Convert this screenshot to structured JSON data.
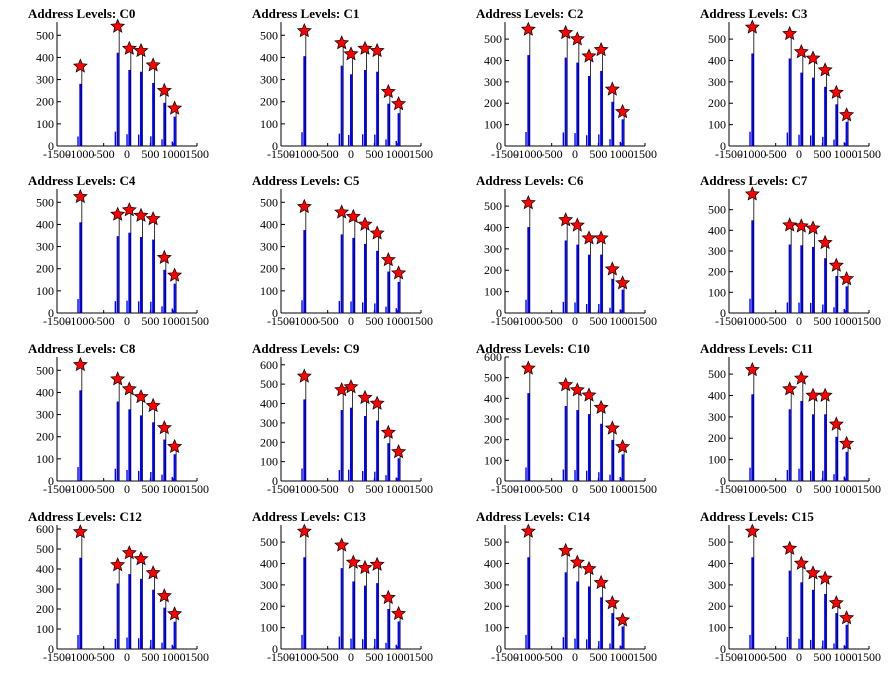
{
  "chart_data": [
    {
      "type": "bar",
      "title": "Address Levels: C0",
      "xlim": [
        -1500,
        1500
      ],
      "ylim": [
        0,
        560
      ],
      "xticks": [
        "-1500",
        "-1000",
        "-500",
        "0",
        "500",
        "1000",
        "1500"
      ],
      "yticks": [
        "0",
        "100",
        "200",
        "300",
        "400",
        "500"
      ],
      "series": [
        {
          "x": [
            -1000,
            -200,
            50,
            300,
            560,
            800,
            1020
          ],
          "values": [
            360,
            540,
            440,
            430,
            365,
            250,
            170
          ]
        }
      ]
    },
    {
      "type": "bar",
      "title": "Address Levels: C1",
      "xlim": [
        -1500,
        1500
      ],
      "ylim": [
        0,
        560
      ],
      "xticks": [
        "-1500",
        "-1000",
        "-500",
        "0",
        "500",
        "1000",
        "1500"
      ],
      "yticks": [
        "0",
        "100",
        "200",
        "300",
        "400",
        "500"
      ],
      "series": [
        {
          "x": [
            -1000,
            -200,
            0,
            300,
            560,
            800,
            1020
          ],
          "values": [
            520,
            465,
            415,
            440,
            430,
            245,
            190
          ]
        }
      ]
    },
    {
      "type": "bar",
      "title": "Address Levels: C2",
      "xlim": [
        -1500,
        1500
      ],
      "ylim": [
        0,
        580
      ],
      "xticks": [
        "-1500",
        "-1000",
        "-500",
        "0",
        "500",
        "1000",
        "1500"
      ],
      "yticks": [
        "0",
        "100",
        "200",
        "300",
        "400",
        "500"
      ],
      "series": [
        {
          "x": [
            -1000,
            -200,
            50,
            300,
            560,
            800,
            1020
          ],
          "values": [
            545,
            530,
            500,
            420,
            450,
            265,
            160
          ]
        }
      ]
    },
    {
      "type": "bar",
      "title": "Address Levels: C3",
      "xlim": [
        -1500,
        1500
      ],
      "ylim": [
        0,
        580
      ],
      "xticks": [
        "-1500",
        "-1000",
        "-500",
        "0",
        "500",
        "1000",
        "1500"
      ],
      "yticks": [
        "0",
        "100",
        "200",
        "300",
        "400",
        "500"
      ],
      "series": [
        {
          "x": [
            -1000,
            -200,
            50,
            300,
            560,
            800,
            1020
          ],
          "values": [
            555,
            525,
            440,
            410,
            355,
            250,
            145
          ]
        }
      ]
    },
    {
      "type": "bar",
      "title": "Address Levels: C4",
      "xlim": [
        -1500,
        1500
      ],
      "ylim": [
        0,
        560
      ],
      "xticks": [
        "-1500",
        "-1000",
        "-500",
        "0",
        "500",
        "1000",
        "1500"
      ],
      "yticks": [
        "0",
        "100",
        "200",
        "300",
        "400",
        "500"
      ],
      "series": [
        {
          "x": [
            -1000,
            -200,
            50,
            300,
            560,
            800,
            1020
          ],
          "values": [
            525,
            445,
            465,
            440,
            425,
            250,
            170
          ]
        }
      ]
    },
    {
      "type": "bar",
      "title": "Address Levels: C5",
      "xlim": [
        -1500,
        1500
      ],
      "ylim": [
        0,
        560
      ],
      "xticks": [
        "-1500",
        "-1000",
        "-500",
        "0",
        "500",
        "1000",
        "1500"
      ],
      "yticks": [
        "0",
        "100",
        "200",
        "300",
        "400",
        "500"
      ],
      "series": [
        {
          "x": [
            -1000,
            -200,
            50,
            300,
            560,
            800,
            1020
          ],
          "values": [
            480,
            455,
            435,
            400,
            360,
            240,
            180
          ]
        }
      ]
    },
    {
      "type": "bar",
      "title": "Address Levels: C6",
      "xlim": [
        -1500,
        1500
      ],
      "ylim": [
        0,
        580
      ],
      "xticks": [
        "-1500",
        "-1000",
        "-500",
        "0",
        "500",
        "1000",
        "1500"
      ],
      "yticks": [
        "0",
        "100",
        "200",
        "300",
        "400",
        "500"
      ],
      "series": [
        {
          "x": [
            -1000,
            -200,
            50,
            300,
            560,
            800,
            1020
          ],
          "values": [
            515,
            435,
            410,
            350,
            350,
            205,
            140
          ]
        }
      ]
    },
    {
      "type": "bar",
      "title": "Address Levels: C7",
      "xlim": [
        -1500,
        1500
      ],
      "ylim": [
        0,
        600
      ],
      "xticks": [
        "-1500",
        "-1000",
        "-500",
        "0",
        "500",
        "1000",
        "1500"
      ],
      "yticks": [
        "0",
        "100",
        "200",
        "300",
        "400",
        "500"
      ],
      "series": [
        {
          "x": [
            -1000,
            -200,
            50,
            300,
            560,
            800,
            1020
          ],
          "values": [
            575,
            425,
            420,
            410,
            340,
            230,
            165
          ]
        }
      ]
    },
    {
      "type": "bar",
      "title": "Address Levels: C8",
      "xlim": [
        -1500,
        1500
      ],
      "ylim": [
        0,
        560
      ],
      "xticks": [
        "-1500",
        "-1000",
        "-500",
        "0",
        "500",
        "1000",
        "1500"
      ],
      "yticks": [
        "0",
        "100",
        "200",
        "300",
        "400",
        "500"
      ],
      "series": [
        {
          "x": [
            -1000,
            -200,
            50,
            300,
            560,
            800,
            1020
          ],
          "values": [
            525,
            460,
            415,
            380,
            340,
            240,
            155
          ]
        }
      ]
    },
    {
      "type": "bar",
      "title": "Address Levels: C9",
      "xlim": [
        -1500,
        1500
      ],
      "ylim": [
        0,
        640
      ],
      "xticks": [
        "-1500",
        "-1000",
        "-500",
        "0",
        "500",
        "1000",
        "1500"
      ],
      "yticks": [
        "0",
        "100",
        "200",
        "300",
        "400",
        "500",
        "600"
      ],
      "series": [
        {
          "x": [
            -1000,
            -200,
            0,
            300,
            560,
            800,
            1020
          ],
          "values": [
            540,
            470,
            485,
            430,
            400,
            250,
            150
          ]
        }
      ]
    },
    {
      "type": "bar",
      "title": "Address Levels: C10",
      "xlim": [
        -1500,
        1500
      ],
      "ylim": [
        0,
        600
      ],
      "xticks": [
        "-1500",
        "-1000",
        "-500",
        "0",
        "500",
        "1000",
        "1500"
      ],
      "yticks": [
        "0",
        "100",
        "200",
        "300",
        "400",
        "500",
        "600"
      ],
      "series": [
        {
          "x": [
            -1000,
            -200,
            50,
            300,
            560,
            800,
            1020
          ],
          "values": [
            545,
            465,
            440,
            415,
            355,
            255,
            165
          ]
        }
      ]
    },
    {
      "type": "bar",
      "title": "Address Levels: C11",
      "xlim": [
        -1500,
        1500
      ],
      "ylim": [
        0,
        580
      ],
      "xticks": [
        "-1500",
        "-1000",
        "-500",
        "0",
        "500",
        "1000",
        "1500"
      ],
      "yticks": [
        "0",
        "100",
        "200",
        "300",
        "400",
        "500"
      ],
      "series": [
        {
          "x": [
            -1000,
            -200,
            50,
            300,
            560,
            800,
            1020
          ],
          "values": [
            520,
            430,
            480,
            400,
            400,
            265,
            175
          ]
        }
      ]
    },
    {
      "type": "bar",
      "title": "Address Levels: C12",
      "xlim": [
        -1500,
        1500
      ],
      "ylim": [
        0,
        620
      ],
      "xticks": [
        "-1500",
        "-1000",
        "-500",
        "0",
        "500",
        "1000",
        "1500"
      ],
      "yticks": [
        "0",
        "100",
        "200",
        "300",
        "400",
        "500",
        "600"
      ],
      "series": [
        {
          "x": [
            -1000,
            -200,
            50,
            300,
            560,
            800,
            1020
          ],
          "values": [
            585,
            420,
            480,
            450,
            380,
            265,
            175
          ]
        }
      ]
    },
    {
      "type": "bar",
      "title": "Address Levels: C13",
      "xlim": [
        -1500,
        1500
      ],
      "ylim": [
        0,
        580
      ],
      "xticks": [
        "-1500",
        "-1000",
        "-500",
        "0",
        "500",
        "1000",
        "1500"
      ],
      "yticks": [
        "0",
        "100",
        "200",
        "300",
        "400",
        "500"
      ],
      "series": [
        {
          "x": [
            -1000,
            -200,
            50,
            300,
            560,
            800,
            1020
          ],
          "values": [
            550,
            485,
            405,
            380,
            395,
            240,
            165
          ]
        }
      ]
    },
    {
      "type": "bar",
      "title": "Address Levels: C14",
      "xlim": [
        -1500,
        1500
      ],
      "ylim": [
        0,
        580
      ],
      "xticks": [
        "-1500",
        "-1000",
        "-500",
        "0",
        "500",
        "1000",
        "1500"
      ],
      "yticks": [
        "0",
        "100",
        "200",
        "300",
        "400",
        "500"
      ],
      "series": [
        {
          "x": [
            -1000,
            -200,
            50,
            300,
            560,
            800,
            1020
          ],
          "values": [
            550,
            460,
            405,
            375,
            310,
            215,
            135
          ]
        }
      ]
    },
    {
      "type": "bar",
      "title": "Address Levels: C15",
      "xlim": [
        -1500,
        1500
      ],
      "ylim": [
        0,
        580
      ],
      "xticks": [
        "-1500",
        "-1000",
        "-500",
        "0",
        "500",
        "1000",
        "1500"
      ],
      "yticks": [
        "0",
        "100",
        "200",
        "300",
        "400",
        "500"
      ],
      "series": [
        {
          "x": [
            -1000,
            -200,
            50,
            300,
            560,
            800,
            1020
          ],
          "values": [
            550,
            470,
            400,
            355,
            330,
            215,
            145
          ]
        }
      ]
    }
  ],
  "colors": {
    "bar": "#0000ff",
    "peak_bar": "#000000",
    "marker": "#ff0000",
    "marker_edge": "#000000",
    "axis": "#000000"
  },
  "marker_shape": "star"
}
